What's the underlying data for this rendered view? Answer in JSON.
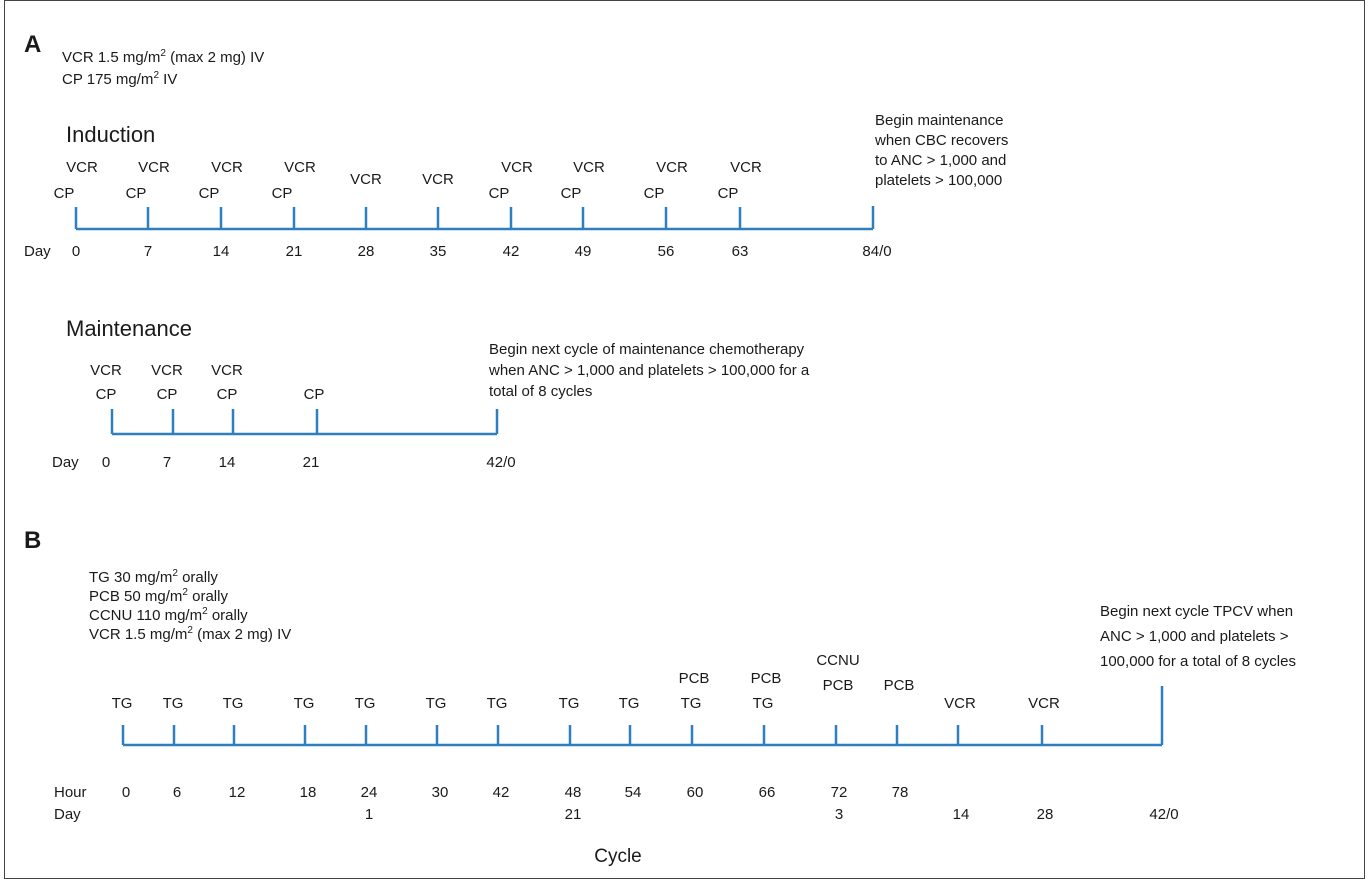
{
  "panel_a": {
    "letter": "A",
    "doses": [
      {
        "prefix": "VCR 1.5 mg/m",
        "sup": "2",
        "suffix": " (max 2 mg) IV"
      },
      {
        "prefix": "CP 175 mg/m",
        "sup": "2",
        "suffix": " IV"
      }
    ],
    "induction": {
      "title": "Induction",
      "day_label": "Day",
      "ticks": [
        {
          "label": "0",
          "drugs": [
            "VCR",
            "CP"
          ]
        },
        {
          "label": "7",
          "drugs": [
            "VCR",
            "CP"
          ]
        },
        {
          "label": "14",
          "drugs": [
            "VCR",
            "CP"
          ]
        },
        {
          "label": "21",
          "drugs": [
            "VCR",
            "CP"
          ]
        },
        {
          "label": "28",
          "drugs": [
            "VCR"
          ]
        },
        {
          "label": "35",
          "drugs": [
            "VCR"
          ]
        },
        {
          "label": "42",
          "drugs": [
            "VCR",
            "CP"
          ]
        },
        {
          "label": "49",
          "drugs": [
            "VCR",
            "CP"
          ]
        },
        {
          "label": "56",
          "drugs": [
            "VCR",
            "CP"
          ]
        },
        {
          "label": "63",
          "drugs": [
            "VCR",
            "CP"
          ]
        },
        {
          "label": "84/0",
          "drugs": []
        }
      ],
      "note": [
        "Begin maintenance",
        "when CBC recovers",
        "to ANC > 1,000 and",
        "platelets > 100,000"
      ]
    },
    "maintenance": {
      "title": "Maintenance",
      "day_label": "Day",
      "ticks": [
        {
          "label": "0",
          "drugs": [
            "VCR",
            "CP"
          ]
        },
        {
          "label": "7",
          "drugs": [
            "VCR",
            "CP"
          ]
        },
        {
          "label": "14",
          "drugs": [
            "VCR",
            "CP"
          ]
        },
        {
          "label": "21",
          "drugs": [
            "CP"
          ]
        },
        {
          "label": "42/0",
          "drugs": []
        }
      ],
      "note": [
        "Begin next cycle of maintenance chemotherapy",
        "when ANC > 1,000 and platelets > 100,000 for a",
        "total of 8 cycles"
      ]
    }
  },
  "panel_b": {
    "letter": "B",
    "doses": [
      {
        "prefix": "TG 30 mg/m",
        "sup": "2",
        "suffix": " orally"
      },
      {
        "prefix": "PCB 50 mg/m",
        "sup": "2",
        "suffix": " orally"
      },
      {
        "prefix": "CCNU 110 mg/m",
        "sup": "2",
        "suffix": " orally"
      },
      {
        "prefix": "VCR 1.5 mg/m",
        "sup": "2",
        "suffix": " (max 2 mg) IV"
      }
    ],
    "hour_label": "Hour",
    "day_label": "Day",
    "ticks": [
      {
        "hour": "0",
        "day": "",
        "drugs": [
          "TG"
        ]
      },
      {
        "hour": "6",
        "day": "",
        "drugs": [
          "TG"
        ]
      },
      {
        "hour": "12",
        "day": "",
        "drugs": [
          "TG"
        ]
      },
      {
        "hour": "18",
        "day": "",
        "drugs": [
          "TG"
        ]
      },
      {
        "hour": "24",
        "day": "1",
        "drugs": [
          "TG"
        ]
      },
      {
        "hour": "30",
        "day": "",
        "drugs": [
          "TG"
        ]
      },
      {
        "hour": "42",
        "day": "",
        "drugs": [
          "TG"
        ]
      },
      {
        "hour": "48",
        "day": "21",
        "drugs": [
          "TG"
        ]
      },
      {
        "hour": "54",
        "day": "",
        "drugs": [
          "TG"
        ]
      },
      {
        "hour": "60",
        "day": "",
        "drugs": [
          "PCB",
          "TG"
        ]
      },
      {
        "hour": "66",
        "day": "",
        "drugs": [
          "PCB",
          "TG"
        ]
      },
      {
        "hour": "72",
        "day": "3",
        "drugs": [
          "CCNU",
          "PCB"
        ]
      },
      {
        "hour": "78",
        "day": "",
        "drugs": [
          "PCB"
        ]
      },
      {
        "hour": "",
        "day": "14",
        "drugs": [
          "VCR"
        ]
      },
      {
        "hour": "",
        "day": "28",
        "drugs": [
          "VCR"
        ]
      },
      {
        "hour": "",
        "day": "42/0",
        "drugs": []
      }
    ],
    "note": [
      "Begin next cycle  TPCV when",
      "ANC > 1,000 and platelets >",
      "100,000 for a total of 8 cycles"
    ],
    "cycle_label": "Cycle"
  },
  "colors": {
    "timeline": "#2e7fc0",
    "text": "#1a1a1a",
    "border": "#444444"
  }
}
